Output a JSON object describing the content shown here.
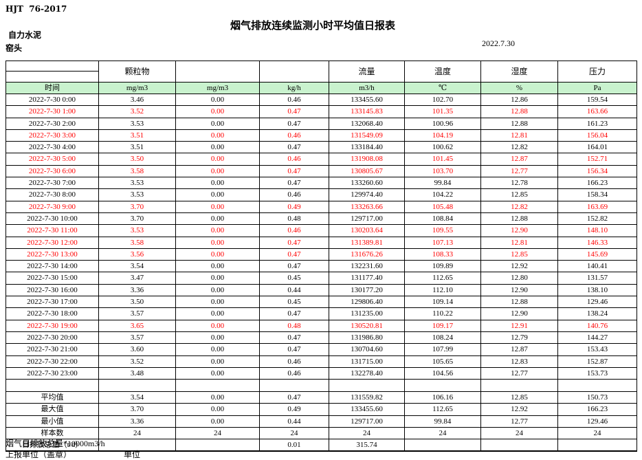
{
  "header": {
    "standard": "HJT  76-2017",
    "title": "烟气排放连续监测小时平均值日报表",
    "company": "自力水泥",
    "station": "窑头",
    "date": "2022.7.30"
  },
  "colors": {
    "unit_row_fill": "#C9F2CE",
    "alarm_text": "#FF0000",
    "grid_line": "#000000"
  },
  "table": {
    "group_headers": [
      "",
      "颗粒物",
      "",
      "",
      "流量",
      "温度",
      "湿度",
      "压力"
    ],
    "unit_headers": [
      "时间",
      "mg/m3",
      "mg/m3",
      "kg/h",
      "m3/h",
      "℃",
      "%",
      "Pa"
    ],
    "rows": [
      {
        "time": "2022-7-30  0:00",
        "values": [
          "3.46",
          "0.00",
          "0.46",
          "133455.60",
          "102.70",
          "12.86",
          "159.54"
        ],
        "alarm": false
      },
      {
        "time": "2022-7-30  1:00",
        "values": [
          "3.52",
          "0.00",
          "0.47",
          "133145.83",
          "101.35",
          "12.88",
          "163.66"
        ],
        "alarm": true
      },
      {
        "time": "2022-7-30  2:00",
        "values": [
          "3.53",
          "0.00",
          "0.47",
          "132068.40",
          "100.96",
          "12.88",
          "161.23"
        ],
        "alarm": false
      },
      {
        "time": "2022-7-30  3:00",
        "values": [
          "3.51",
          "0.00",
          "0.46",
          "131549.09",
          "104.19",
          "12.81",
          "156.04"
        ],
        "alarm": true
      },
      {
        "time": "2022-7-30  4:00",
        "values": [
          "3.51",
          "0.00",
          "0.47",
          "133184.40",
          "100.62",
          "12.82",
          "164.01"
        ],
        "alarm": false
      },
      {
        "time": "2022-7-30  5:00",
        "values": [
          "3.50",
          "0.00",
          "0.46",
          "131908.08",
          "101.45",
          "12.87",
          "152.71"
        ],
        "alarm": true
      },
      {
        "time": "2022-7-30  6:00",
        "values": [
          "3.58",
          "0.00",
          "0.47",
          "130805.67",
          "103.70",
          "12.77",
          "156.34"
        ],
        "alarm": true
      },
      {
        "time": "2022-7-30  7:00",
        "values": [
          "3.53",
          "0.00",
          "0.47",
          "133260.60",
          "99.84",
          "12.78",
          "166.23"
        ],
        "alarm": false
      },
      {
        "time": "2022-7-30  8:00",
        "values": [
          "3.53",
          "0.00",
          "0.46",
          "129974.40",
          "104.22",
          "12.85",
          "158.34"
        ],
        "alarm": false
      },
      {
        "time": "2022-7-30  9:00",
        "values": [
          "3.70",
          "0.00",
          "0.49",
          "133263.66",
          "105.48",
          "12.82",
          "163.69"
        ],
        "alarm": true
      },
      {
        "time": "2022-7-30 10:00",
        "values": [
          "3.70",
          "0.00",
          "0.48",
          "129717.00",
          "108.84",
          "12.88",
          "152.82"
        ],
        "alarm": false
      },
      {
        "time": "2022-7-30 11:00",
        "values": [
          "3.53",
          "0.00",
          "0.46",
          "130203.64",
          "109.55",
          "12.90",
          "148.10"
        ],
        "alarm": true
      },
      {
        "time": "2022-7-30 12:00",
        "values": [
          "3.58",
          "0.00",
          "0.47",
          "131389.81",
          "107.13",
          "12.81",
          "146.33"
        ],
        "alarm": true
      },
      {
        "time": "2022-7-30 13:00",
        "values": [
          "3.56",
          "0.00",
          "0.47",
          "131676.26",
          "108.33",
          "12.85",
          "145.69"
        ],
        "alarm": true
      },
      {
        "time": "2022-7-30 14:00",
        "values": [
          "3.54",
          "0.00",
          "0.47",
          "132231.60",
          "109.89",
          "12.92",
          "140.41"
        ],
        "alarm": false
      },
      {
        "time": "2022-7-30 15:00",
        "values": [
          "3.47",
          "0.00",
          "0.45",
          "131177.40",
          "112.65",
          "12.80",
          "131.57"
        ],
        "alarm": false
      },
      {
        "time": "2022-7-30 16:00",
        "values": [
          "3.36",
          "0.00",
          "0.44",
          "130177.20",
          "112.10",
          "12.90",
          "138.10"
        ],
        "alarm": false
      },
      {
        "time": "2022-7-30 17:00",
        "values": [
          "3.50",
          "0.00",
          "0.45",
          "129806.40",
          "109.14",
          "12.88",
          "129.46"
        ],
        "alarm": false
      },
      {
        "time": "2022-7-30 18:00",
        "values": [
          "3.57",
          "0.00",
          "0.47",
          "131235.00",
          "110.22",
          "12.90",
          "138.24"
        ],
        "alarm": false
      },
      {
        "time": "2022-7-30 19:00",
        "values": [
          "3.65",
          "0.00",
          "0.48",
          "130520.81",
          "109.17",
          "12.91",
          "140.76"
        ],
        "alarm": true
      },
      {
        "time": "2022-7-30 20:00",
        "values": [
          "3.57",
          "0.00",
          "0.47",
          "131986.80",
          "108.24",
          "12.79",
          "144.27"
        ],
        "alarm": false
      },
      {
        "time": "2022-7-30 21:00",
        "values": [
          "3.60",
          "0.00",
          "0.47",
          "130704.60",
          "107.99",
          "12.87",
          "153.43"
        ],
        "alarm": false
      },
      {
        "time": "2022-7-30 22:00",
        "values": [
          "3.52",
          "0.00",
          "0.46",
          "131715.00",
          "105.65",
          "12.83",
          "152.87"
        ],
        "alarm": false
      },
      {
        "time": "2022-7-30 23:00",
        "values": [
          "3.48",
          "0.00",
          "0.46",
          "132278.40",
          "104.56",
          "12.77",
          "153.73"
        ],
        "alarm": false
      }
    ],
    "summary": [
      {
        "label": "平均值",
        "values": [
          "3.54",
          "0.00",
          "0.47",
          "131559.82",
          "106.16",
          "12.85",
          "150.73"
        ]
      },
      {
        "label": "最大值",
        "values": [
          "3.70",
          "0.00",
          "0.49",
          "133455.60",
          "112.65",
          "12.92",
          "166.23"
        ]
      },
      {
        "label": "最小值",
        "values": [
          "3.36",
          "0.00",
          "0.44",
          "129717.00",
          "99.84",
          "12.77",
          "129.46"
        ]
      },
      {
        "label": "样本数",
        "values": [
          "24",
          "24",
          "24",
          "24",
          "24",
          "24",
          "24"
        ]
      },
      {
        "label": "日排放总量（t/d）",
        "values": [
          "",
          "",
          "0.01",
          "315.74",
          "",
          "",
          ""
        ]
      }
    ]
  },
  "footer": {
    "note": "烟气日排放总量*10000m3/h",
    "report_unit_label": "上报单位（盖章）",
    "unit_label": "单位"
  }
}
